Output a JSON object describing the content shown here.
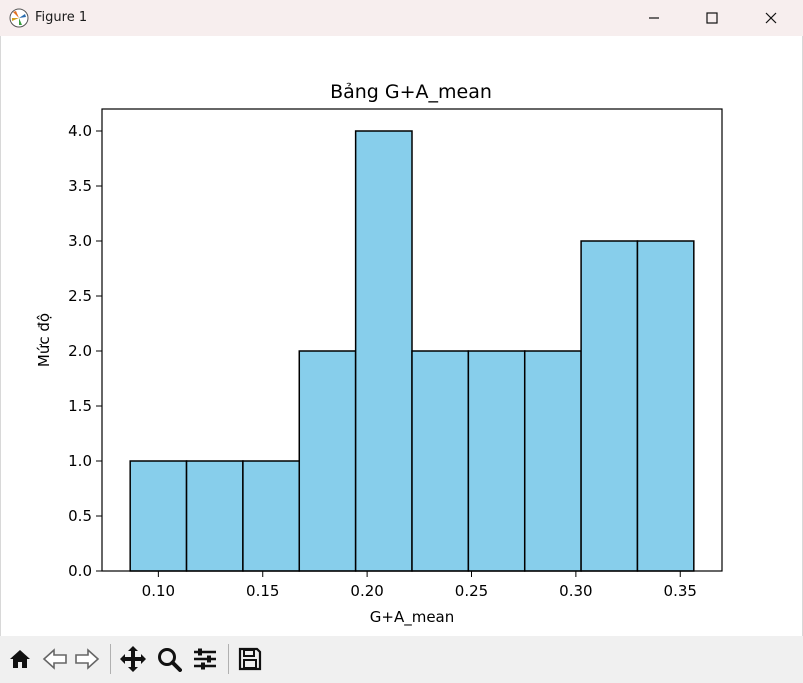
{
  "window": {
    "title": "Figure 1",
    "controls": [
      "minimize-icon",
      "maximize-icon",
      "close-icon"
    ]
  },
  "toolbar": {
    "buttons": [
      "home-icon",
      "back-icon",
      "forward-icon",
      "pan-icon",
      "zoom-icon",
      "configure-subplots-icon",
      "save-icon"
    ]
  },
  "chart_data": {
    "type": "bar",
    "title": "Bảng G+A_mean",
    "xlabel": "G+A_mean",
    "ylabel": "Mức độ",
    "bin_edges": [
      0.0865,
      0.1135,
      0.1405,
      0.1675,
      0.1945,
      0.2215,
      0.2485,
      0.2755,
      0.3025,
      0.3295,
      0.3565
    ],
    "values": [
      1,
      1,
      1,
      2,
      4,
      2,
      2,
      2,
      3,
      3
    ],
    "xlim": [
      0.073,
      0.37
    ],
    "ylim": [
      0,
      4.2
    ],
    "xticks": [
      "0.10",
      "0.15",
      "0.20",
      "0.25",
      "0.30",
      "0.35"
    ],
    "yticks": [
      "0.0",
      "0.5",
      "1.0",
      "1.5",
      "2.0",
      "2.5",
      "3.0",
      "3.5",
      "4.0"
    ],
    "bar_color": "#87ceeb",
    "edge_color": "#000000",
    "grid": false
  }
}
